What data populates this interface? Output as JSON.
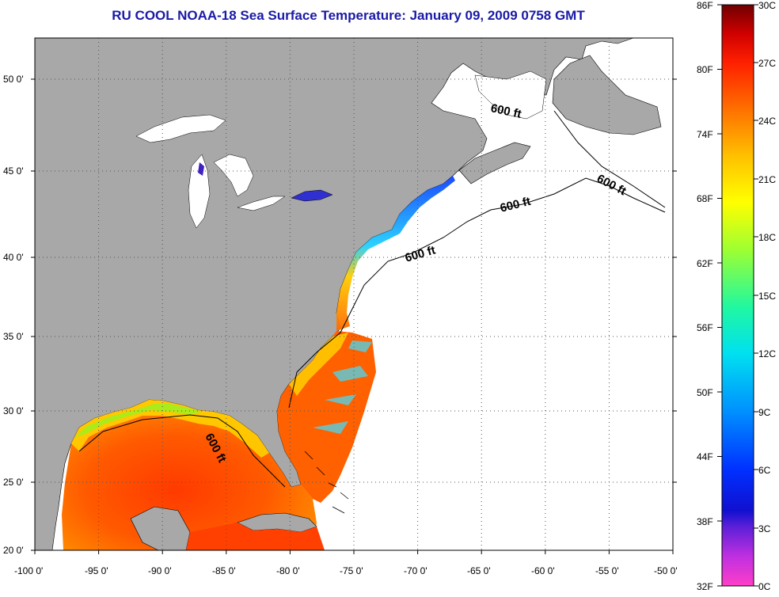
{
  "title": "RU COOL  NOAA-18  Sea Surface Temperature:  January 09, 2009 0758 GMT",
  "map": {
    "lon_labels": [
      "-100 0'",
      "-95 0'",
      "-90 0'",
      "-85 0'",
      "-80 0'",
      "-75 0'",
      "-70 0'",
      "-65 0'",
      "-60 0'",
      "-55 0'",
      "-50 0'"
    ],
    "lat_labels": [
      "50 0'",
      "45 0'",
      "40 0'",
      "35 0'",
      "30 0'",
      "25 0'",
      "20 0'"
    ],
    "contour_labels": [
      "600 ft",
      "600 ft",
      "600 ft",
      "600 ft",
      "600 ft"
    ],
    "colors": {
      "land": "#a8a8a8",
      "no_data": "#ffffff",
      "grid": "#000000"
    }
  },
  "colorbar": {
    "fahrenheit_labels": [
      "86F",
      "80F",
      "74F",
      "68F",
      "62F",
      "56F",
      "50F",
      "44F",
      "38F",
      "32F"
    ],
    "celsius_labels": [
      "30C",
      "27C",
      "24C",
      "21C",
      "18C",
      "15C",
      "12C",
      "9C",
      "6C",
      "3C",
      "0C"
    ],
    "stops": [
      "#ff3ec8",
      "#8a2be2",
      "#1010d0",
      "#0050ff",
      "#00a0ff",
      "#00e8e8",
      "#20ff90",
      "#b0ff20",
      "#ffff00",
      "#ffc000",
      "#ff7000",
      "#ff2000",
      "#c00000",
      "#700000"
    ]
  }
}
